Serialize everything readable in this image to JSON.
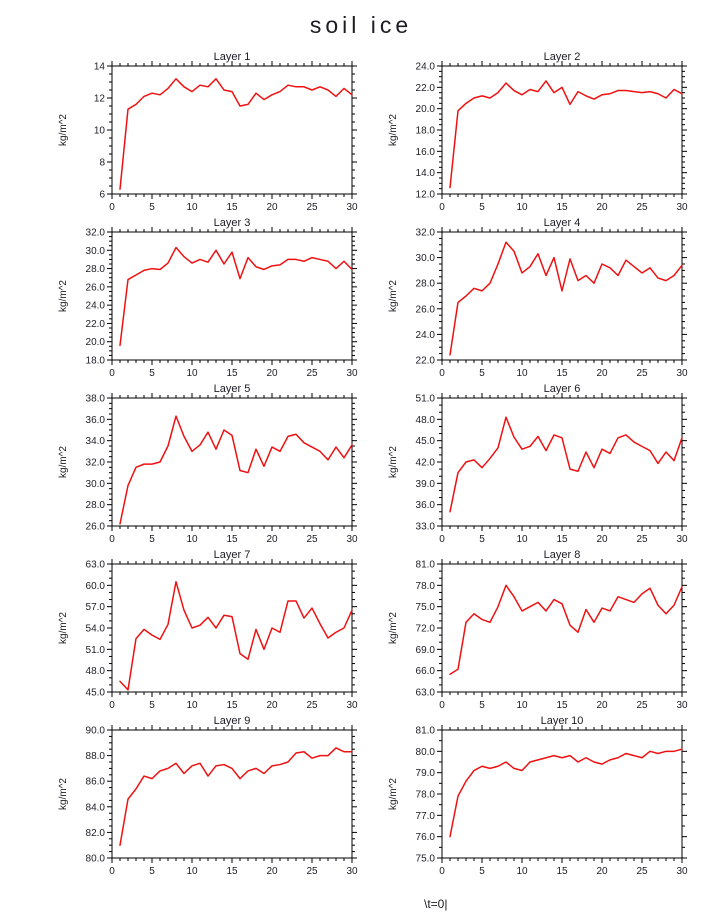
{
  "page_title": "soil ice",
  "footer_text": "\\t=0|",
  "colors": {
    "line": "#ee1111",
    "axis": "#000000",
    "text": "#1c1c24"
  },
  "chart_data": [
    {
      "type": "line",
      "title": "Layer 1",
      "ylabel": "kg/m^2",
      "xlabel": "",
      "xlim": [
        0,
        30
      ],
      "xtick_step": 5,
      "x_start": 1,
      "ylim": [
        6,
        14
      ],
      "ytick_step": 2,
      "ytick_decimals": 0,
      "y_minor_divisions": 4,
      "grid": false,
      "legend": "none",
      "line_color": "#ee1111",
      "values": [
        6.3,
        11.3,
        11.6,
        12.1,
        12.3,
        12.2,
        12.6,
        13.2,
        12.7,
        12.4,
        12.8,
        12.7,
        13.2,
        12.5,
        12.4,
        11.5,
        11.6,
        12.3,
        11.9,
        12.2,
        12.4,
        12.8,
        12.7,
        12.7,
        12.5,
        12.7,
        12.5,
        12.1,
        12.6,
        12.2
      ]
    },
    {
      "type": "line",
      "title": "Layer 2",
      "ylabel": "kg/m^2",
      "xlabel": "",
      "xlim": [
        0,
        30
      ],
      "xtick_step": 5,
      "x_start": 1,
      "ylim": [
        12,
        24
      ],
      "ytick_step": 2,
      "ytick_decimals": 1,
      "y_minor_divisions": 4,
      "grid": false,
      "legend": "none",
      "line_color": "#ee1111",
      "values": [
        12.6,
        19.8,
        20.5,
        21.0,
        21.2,
        21.0,
        21.5,
        22.4,
        21.7,
        21.3,
        21.8,
        21.6,
        22.6,
        21.5,
        22.0,
        20.4,
        21.6,
        21.2,
        20.9,
        21.3,
        21.4,
        21.7,
        21.7,
        21.6,
        21.5,
        21.6,
        21.4,
        21.0,
        21.8,
        21.4
      ]
    },
    {
      "type": "line",
      "title": "Layer 3",
      "ylabel": "kg/m^2",
      "xlabel": "",
      "xlim": [
        0,
        30
      ],
      "xtick_step": 5,
      "x_start": 1,
      "ylim": [
        18,
        32
      ],
      "ytick_step": 2,
      "ytick_decimals": 1,
      "y_minor_divisions": 4,
      "grid": false,
      "legend": "none",
      "line_color": "#ee1111",
      "values": [
        19.6,
        26.8,
        27.3,
        27.8,
        28.0,
        27.9,
        28.6,
        30.3,
        29.3,
        28.6,
        29.0,
        28.7,
        30.0,
        28.5,
        29.8,
        26.9,
        29.2,
        28.2,
        27.9,
        28.3,
        28.4,
        29.0,
        29.0,
        28.8,
        29.2,
        29.0,
        28.8,
        28.0,
        28.8,
        27.9
      ]
    },
    {
      "type": "line",
      "title": "Layer 4",
      "ylabel": "kg/m^2",
      "xlabel": "",
      "xlim": [
        0,
        30
      ],
      "xtick_step": 5,
      "x_start": 1,
      "ylim": [
        22,
        32
      ],
      "ytick_step": 2,
      "ytick_decimals": 1,
      "y_minor_divisions": 4,
      "grid": false,
      "legend": "none",
      "line_color": "#ee1111",
      "values": [
        22.4,
        26.5,
        27.0,
        27.6,
        27.4,
        28.0,
        29.5,
        31.2,
        30.5,
        28.8,
        29.3,
        30.3,
        28.6,
        30.0,
        27.4,
        29.9,
        28.2,
        28.6,
        28.0,
        29.5,
        29.2,
        28.6,
        29.8,
        29.3,
        28.8,
        29.2,
        28.4,
        28.2,
        28.6,
        29.4
      ]
    },
    {
      "type": "line",
      "title": "Layer 5",
      "ylabel": "kg/m^2",
      "xlabel": "",
      "xlim": [
        0,
        30
      ],
      "xtick_step": 5,
      "x_start": 1,
      "ylim": [
        26,
        38
      ],
      "ytick_step": 2,
      "ytick_decimals": 1,
      "y_minor_divisions": 4,
      "grid": false,
      "legend": "none",
      "line_color": "#ee1111",
      "values": [
        26.2,
        29.8,
        31.5,
        31.8,
        31.8,
        32.0,
        33.5,
        36.3,
        34.4,
        33.0,
        33.6,
        34.8,
        33.2,
        35.0,
        34.5,
        31.2,
        31.0,
        33.2,
        31.6,
        33.4,
        33.0,
        34.4,
        34.6,
        33.8,
        33.4,
        33.0,
        32.2,
        33.4,
        32.4,
        33.6
      ]
    },
    {
      "type": "line",
      "title": "Layer 6",
      "ylabel": "kg/m^2",
      "xlabel": "",
      "xlim": [
        0,
        30
      ],
      "xtick_step": 5,
      "x_start": 1,
      "ylim": [
        33,
        51
      ],
      "ytick_step": 3,
      "ytick_decimals": 1,
      "y_minor_divisions": 3,
      "grid": false,
      "legend": "none",
      "line_color": "#ee1111",
      "values": [
        35.0,
        40.5,
        42.0,
        42.3,
        41.2,
        42.5,
        44.0,
        48.3,
        45.5,
        43.8,
        44.2,
        45.6,
        43.6,
        45.8,
        45.4,
        41.0,
        40.7,
        43.4,
        41.2,
        43.8,
        43.2,
        45.4,
        45.8,
        44.8,
        44.2,
        43.6,
        41.8,
        43.4,
        42.2,
        45.4
      ]
    },
    {
      "type": "line",
      "title": "Layer 7",
      "ylabel": "kg/m^2",
      "xlabel": "",
      "xlim": [
        0,
        30
      ],
      "xtick_step": 5,
      "x_start": 1,
      "ylim": [
        45,
        63
      ],
      "ytick_step": 3,
      "ytick_decimals": 1,
      "y_minor_divisions": 3,
      "grid": false,
      "legend": "none",
      "line_color": "#ee1111",
      "values": [
        46.5,
        45.3,
        52.5,
        53.8,
        53.0,
        52.4,
        54.5,
        60.5,
        56.5,
        54.0,
        54.4,
        55.5,
        54.0,
        55.8,
        55.6,
        50.4,
        49.6,
        53.8,
        51.0,
        54.0,
        53.4,
        57.8,
        57.8,
        55.4,
        56.8,
        54.6,
        52.6,
        53.4,
        54.0,
        56.5
      ]
    },
    {
      "type": "line",
      "title": "Layer 8",
      "ylabel": "kg/m^2",
      "xlabel": "",
      "xlim": [
        0,
        30
      ],
      "xtick_step": 5,
      "x_start": 1,
      "ylim": [
        63,
        81
      ],
      "ytick_step": 3,
      "ytick_decimals": 1,
      "y_minor_divisions": 3,
      "grid": false,
      "legend": "none",
      "line_color": "#ee1111",
      "values": [
        65.5,
        66.2,
        72.8,
        74.0,
        73.2,
        72.8,
        75.0,
        78.0,
        76.4,
        74.4,
        75.0,
        75.6,
        74.4,
        76.0,
        75.4,
        72.4,
        71.4,
        74.6,
        72.8,
        74.8,
        74.4,
        76.4,
        76.0,
        75.6,
        76.8,
        77.6,
        75.2,
        74.0,
        75.2,
        77.8
      ]
    },
    {
      "type": "line",
      "title": "Layer 9",
      "ylabel": "kg/m^2",
      "xlabel": "",
      "xlim": [
        0,
        30
      ],
      "xtick_step": 5,
      "x_start": 1,
      "ylim": [
        80,
        90
      ],
      "ytick_step": 2,
      "ytick_decimals": 1,
      "y_minor_divisions": 4,
      "grid": false,
      "legend": "none",
      "line_color": "#ee1111",
      "values": [
        81.0,
        84.6,
        85.4,
        86.4,
        86.2,
        86.8,
        87.0,
        87.4,
        86.6,
        87.2,
        87.4,
        86.4,
        87.2,
        87.3,
        87.0,
        86.2,
        86.8,
        87.0,
        86.6,
        87.2,
        87.3,
        87.5,
        88.2,
        88.3,
        87.8,
        88.0,
        88.0,
        88.6,
        88.3,
        88.3
      ]
    },
    {
      "type": "line",
      "title": "Layer 10",
      "ylabel": "kg/m^2",
      "xlabel": "",
      "xlim": [
        0,
        30
      ],
      "xtick_step": 5,
      "x_start": 1,
      "ylim": [
        75,
        81
      ],
      "ytick_step": 1,
      "ytick_decimals": 1,
      "y_minor_divisions": 2,
      "grid": false,
      "legend": "none",
      "line_color": "#ee1111",
      "values": [
        76.0,
        77.9,
        78.6,
        79.1,
        79.3,
        79.2,
        79.3,
        79.5,
        79.2,
        79.1,
        79.5,
        79.6,
        79.7,
        79.8,
        79.7,
        79.8,
        79.5,
        79.7,
        79.5,
        79.4,
        79.6,
        79.7,
        79.9,
        79.8,
        79.7,
        80.0,
        79.9,
        80.0,
        80.0,
        80.1
      ]
    }
  ]
}
